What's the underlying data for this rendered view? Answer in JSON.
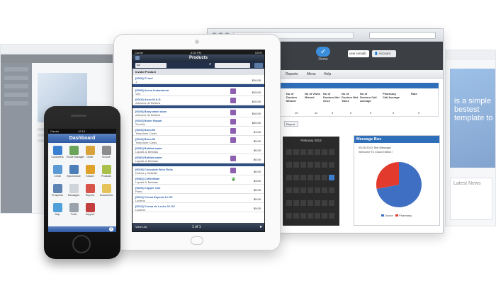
{
  "bg_right": {
    "banner_text": "is a simple bestest template to",
    "card_text": "Latest News"
  },
  "browser": {
    "logo_text": "Demo",
    "user_box": "user (email)",
    "account_button": "Account",
    "menu": [
      "Reports",
      "Menu",
      "Help"
    ],
    "stats": {
      "headers": [
        "No of Doctors Missed",
        "No of Visits Missed",
        "No of Doctors Met Once",
        "No of Doctors Met Twice",
        "No of Doctors Call Average",
        "Pharmacy Call Average",
        "Rate"
      ],
      "values": [
        "10",
        "11",
        "0",
        "0",
        "0",
        "0",
        "0"
      ]
    },
    "report_button": "Report",
    "calendar_title": "February 2013",
    "message_box": {
      "title": "Message Box",
      "line1": "05.05.2013  Test Message",
      "line2": "Welcome To Cloud edition !",
      "legend": [
        "Doctor",
        "Pharmacy"
      ],
      "colors": {
        "doctor": "#3f6fc2",
        "pharmacy": "#e23b2e"
      },
      "pie": {
        "doctor": 0.72,
        "pharmacy": 0.28
      }
    }
  },
  "tablet": {
    "status_left": "Carrier",
    "status_time": "6:32 PM",
    "status_right": "100%",
    "title": "Products",
    "filter_value": "All",
    "groups": [
      {
        "header": "Invalid Product",
        "rows": [
          {
            "name": "[0000] IT tool",
            "sub": "1",
            "price": "$10.00",
            "badge": "none"
          }
        ]
      },
      {
        "header": "",
        "rows": [
          {
            "name": "[0009] Arena Instantanea",
            "sub": "Vial",
            "price": "$15.00",
            "badge": "tag"
          },
          {
            "name": "[0010] Arroz M.A.G",
            "sub": "Articulos de Belleza",
            "price": "$20.00",
            "badge": "tag"
          }
        ]
      },
      {
        "header": "",
        "rows": [
          {
            "name": "[0020] Body wash dove",
            "sub": "Articulos de Belleza",
            "price": "$10.00",
            "badge": "tag"
          },
          {
            "name": "[0023] Boiler Repair",
            "sub": "Servicio",
            "price": "$20.00",
            "badge": "tag"
          },
          {
            "name": "[0015] Bono Bl",
            "sub": "Telephone Cards",
            "price": "$1.00",
            "badge": "tag"
          },
          {
            "name": "[0016] Bono Bl",
            "sub": "Telephone Cards",
            "price": "$5.00",
            "badge": "tag"
          },
          {
            "name": "[0081] Bottled water",
            "sub": "Liquids & Bebidas",
            "price": "$0.00",
            "badge": "none"
          },
          {
            "name": "[0082] Bottled water",
            "sub": "Liquids & Bebidas",
            "price": "$0.00",
            "badge": "tag"
          }
        ]
      },
      {
        "header": "",
        "rows": [
          {
            "name": "[0019] Chocolate Bolo Rolls",
            "sub": "Dulces y Galletas",
            "price": "$0.00",
            "badge": "tag"
          },
          {
            "name": "[0083] CoffeeMate",
            "sub": "Liquids & Bebidas",
            "price": "$3.00",
            "badge": "leaf"
          },
          {
            "name": "[0025] Copper Coil",
            "sub": "Parts",
            "price": "$0.00",
            "badge": "none"
          },
          {
            "name": "[0012] Crema Espesa 12 OZ",
            "sub": "Lacteos",
            "price": "$5.00",
            "badge": "none"
          },
          {
            "name": "[0013] Crema de Leche 12 OZ",
            "sub": "Lacteos",
            "price": "$5.00",
            "badge": "none"
          }
        ]
      }
    ],
    "footer_left": "View List",
    "pager": "1 of 1"
  },
  "phone": {
    "status_left": "Carrier",
    "status_time": "12:13",
    "title": "Dashboard",
    "icons": [
      {
        "label": "Customers",
        "color": "#3b7fd0"
      },
      {
        "label": "Route Manager",
        "color": "#6aa35a"
      },
      {
        "label": "Order",
        "color": "#d9a23a"
      },
      {
        "label": "Invoice",
        "color": "#8d8d8d"
      },
      {
        "label": "Credit",
        "color": "#5c9ad6"
      },
      {
        "label": "Synchronize",
        "color": "#4c7fb8"
      },
      {
        "label": "Search",
        "color": "#e0a12b"
      },
      {
        "label": "Products",
        "color": "#a9c04a"
      },
      {
        "label": "Prospects",
        "color": "#5f84b3"
      },
      {
        "label": "Messages",
        "color": "#cfd4da"
      },
      {
        "label": "Reports",
        "color": "#d8544a"
      },
      {
        "label": "Documents",
        "color": "#e6c25a"
      },
      {
        "label": "Map",
        "color": "#4fa0d9"
      },
      {
        "label": "Tools",
        "color": "#9aa2ab"
      },
      {
        "label": "Support",
        "color": "#c23d3d"
      }
    ]
  }
}
